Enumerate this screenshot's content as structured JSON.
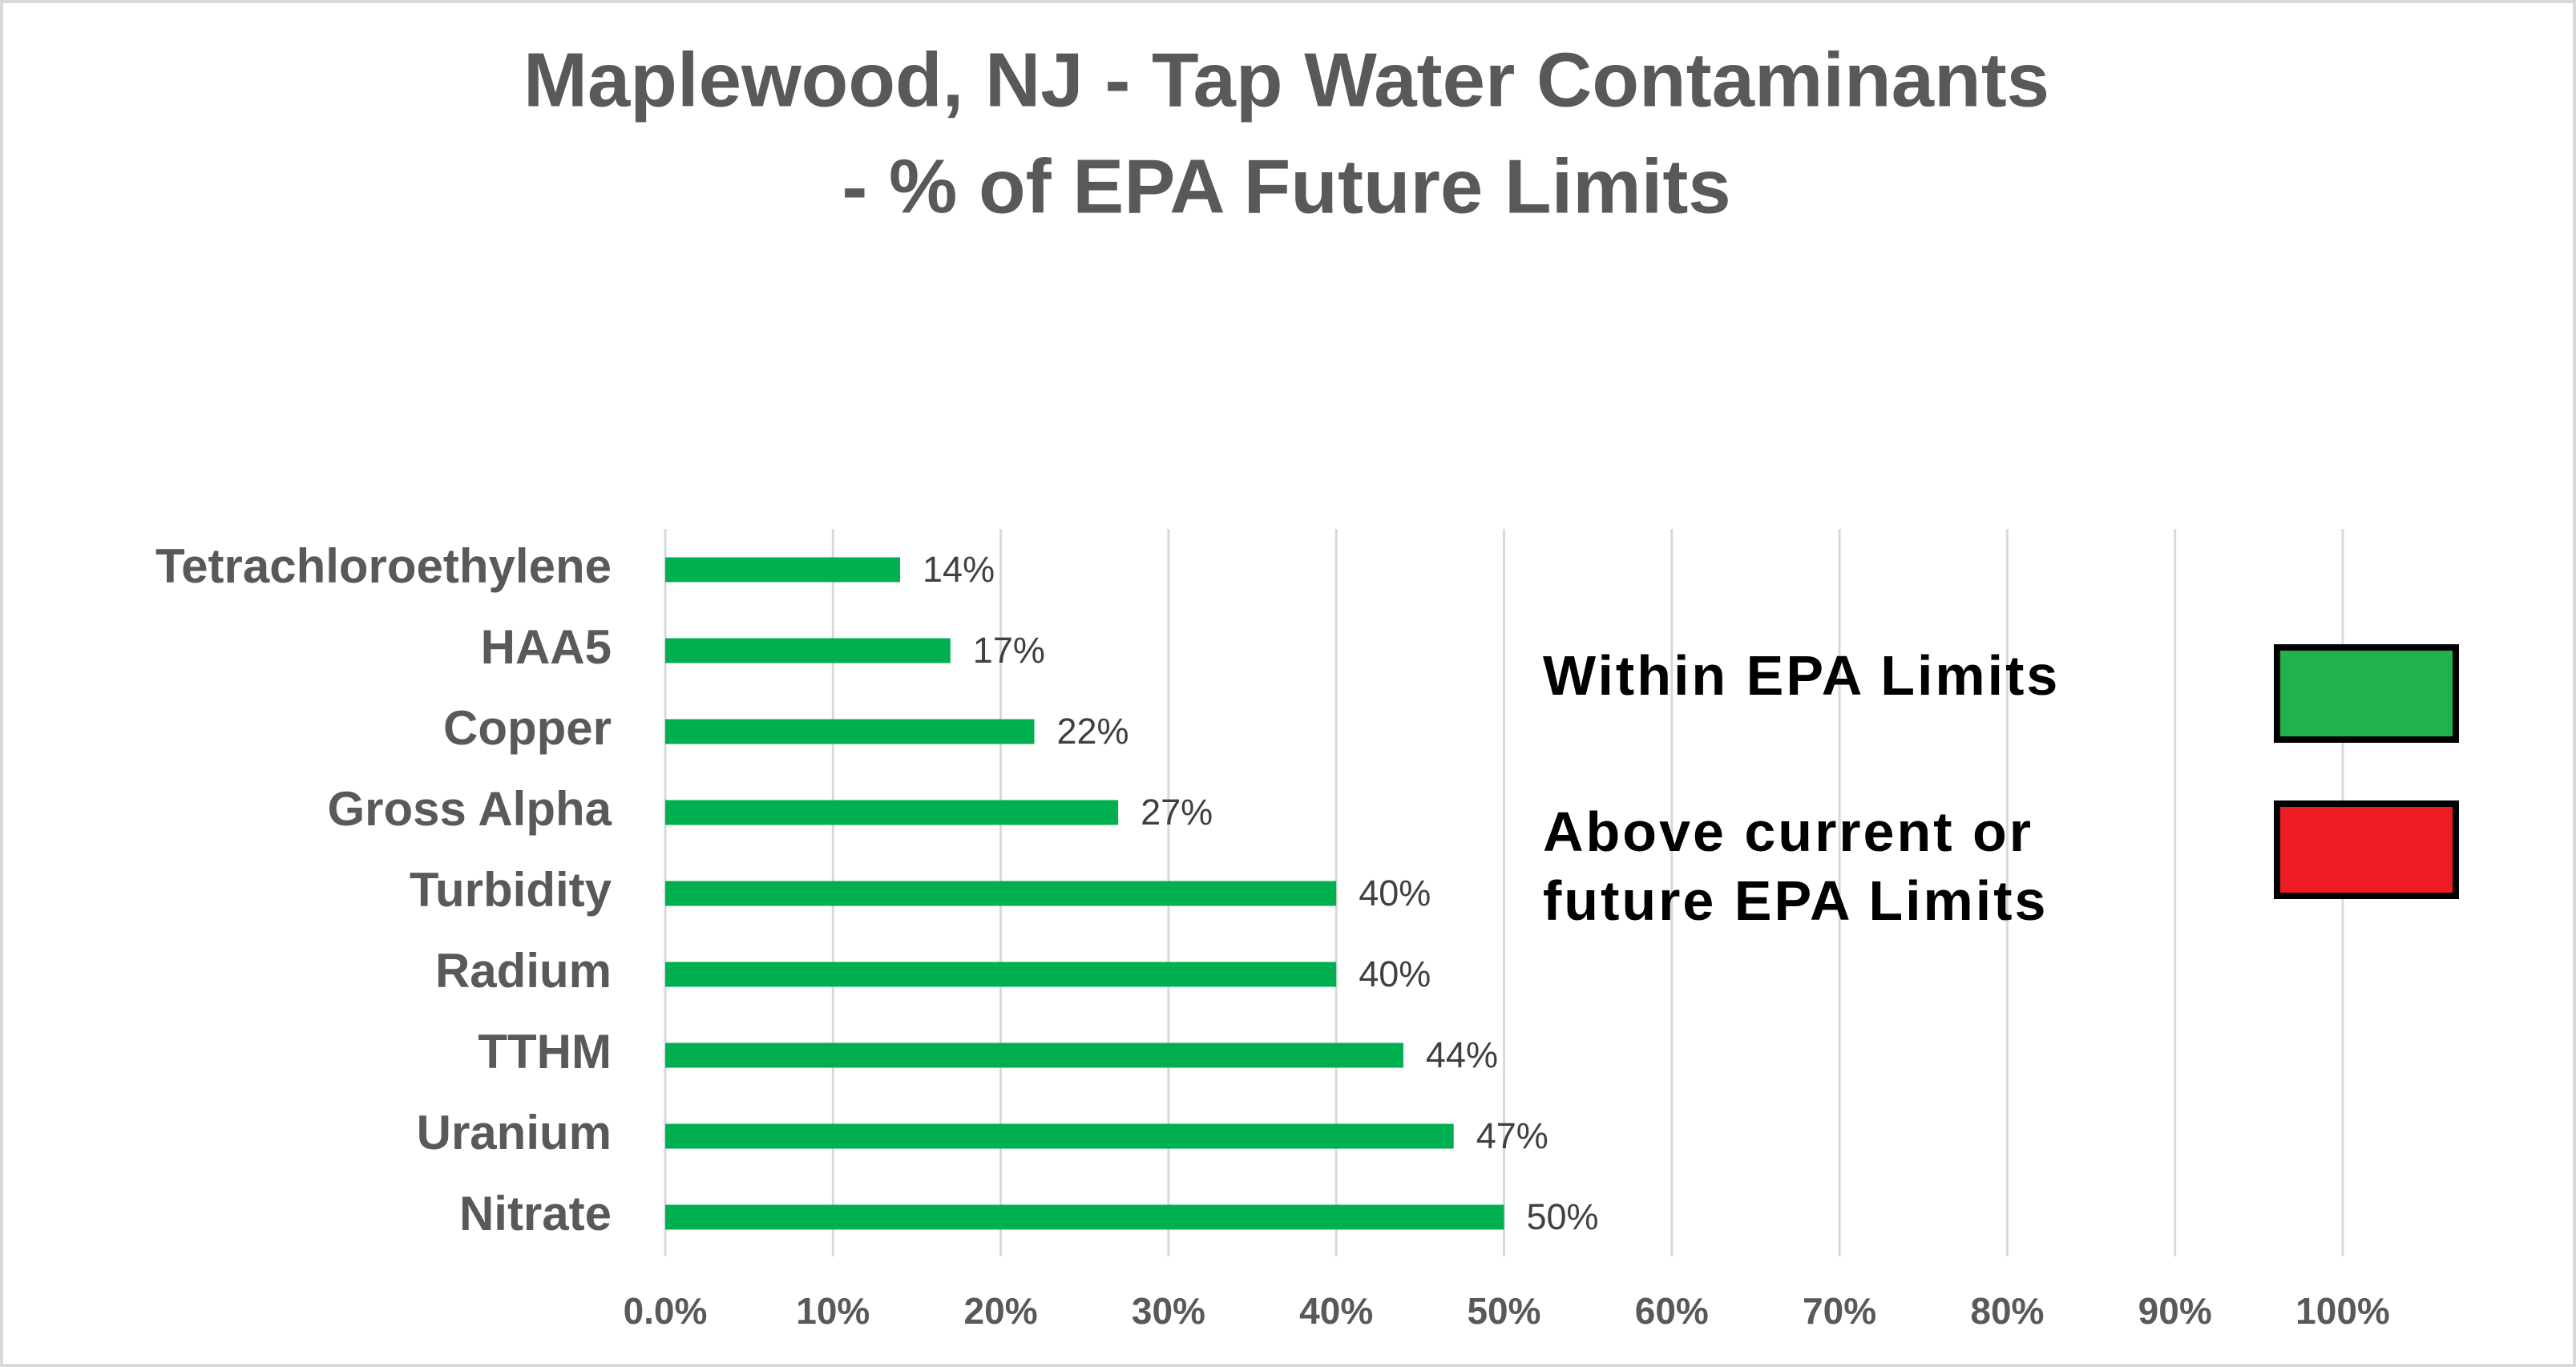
{
  "chart_data": {
    "type": "bar",
    "orientation": "horizontal",
    "title": "Maplewood, NJ - Tap Water Contaminants",
    "subtitle": "- % of EPA Future Limits",
    "categories": [
      "Tetrachloroethylene",
      "HAA5",
      "Copper",
      "Gross Alpha",
      "Turbidity",
      "Radium",
      "TTHM",
      "Uranium",
      "Nitrate"
    ],
    "values": [
      14,
      17,
      22,
      27,
      40,
      40,
      44,
      47,
      50
    ],
    "value_labels": [
      "14%",
      "17%",
      "22%",
      "27%",
      "40%",
      "40%",
      "44%",
      "47%",
      "50%"
    ],
    "color": "#00b050",
    "xlim": [
      0,
      100
    ],
    "xticks": [
      {
        "value": 0,
        "label": "0.0%"
      },
      {
        "value": 10,
        "label": "10%"
      },
      {
        "value": 20,
        "label": "20%"
      },
      {
        "value": 30,
        "label": "30%"
      },
      {
        "value": 40,
        "label": "40%"
      },
      {
        "value": 50,
        "label": "50%"
      },
      {
        "value": 60,
        "label": "60%"
      },
      {
        "value": 70,
        "label": "70%"
      },
      {
        "value": 80,
        "label": "80%"
      },
      {
        "value": 90,
        "label": "90%"
      },
      {
        "value": 100,
        "label": "100%"
      }
    ],
    "grid": true,
    "legend": [
      {
        "label": "Within EPA Limits",
        "color": "#22b14c"
      },
      {
        "label": "Above current or future EPA Limits",
        "color": "#ed1c24"
      }
    ]
  }
}
